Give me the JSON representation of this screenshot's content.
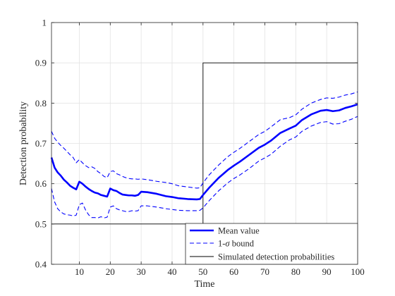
{
  "chart_data": {
    "type": "line",
    "xlabel": "Time",
    "ylabel": "Detection probability",
    "xlim": [
      1,
      100
    ],
    "ylim": [
      0.4,
      1.0
    ],
    "xticks": [
      10,
      20,
      30,
      40,
      50,
      60,
      70,
      80,
      90,
      100
    ],
    "yticks": [
      0.4,
      0.5,
      0.6,
      0.7,
      0.8,
      0.9,
      1
    ],
    "ytick_labels": [
      "0.4",
      "0.5",
      "0.6",
      "0.7",
      "0.8",
      "0.9",
      "1"
    ],
    "grid": true,
    "legend_position": "bottom-right",
    "series": [
      {
        "name": "Mean value",
        "color": "#0000ff",
        "style": "solid-thick",
        "x": [
          1,
          2,
          3,
          4,
          5,
          6,
          7,
          8,
          9,
          10,
          11,
          12,
          13,
          14,
          15,
          16,
          17,
          18,
          19,
          20,
          21,
          22,
          23,
          24,
          25,
          26,
          27,
          28,
          29,
          30,
          32,
          35,
          38,
          40,
          42,
          45,
          48,
          49,
          50,
          52,
          55,
          58,
          60,
          62,
          65,
          68,
          70,
          72,
          75,
          78,
          80,
          82,
          85,
          88,
          90,
          92,
          94,
          96,
          98,
          100
        ],
        "y": [
          0.665,
          0.64,
          0.628,
          0.62,
          0.61,
          0.603,
          0.595,
          0.59,
          0.586,
          0.605,
          0.6,
          0.593,
          0.587,
          0.582,
          0.578,
          0.576,
          0.572,
          0.57,
          0.568,
          0.588,
          0.584,
          0.582,
          0.577,
          0.573,
          0.572,
          0.571,
          0.571,
          0.57,
          0.572,
          0.58,
          0.579,
          0.575,
          0.569,
          0.567,
          0.564,
          0.562,
          0.561,
          0.562,
          0.572,
          0.59,
          0.614,
          0.634,
          0.645,
          0.655,
          0.672,
          0.689,
          0.697,
          0.707,
          0.726,
          0.737,
          0.744,
          0.758,
          0.772,
          0.781,
          0.783,
          0.78,
          0.782,
          0.788,
          0.792,
          0.797
        ]
      },
      {
        "name": "1-σ bound",
        "color": "#0000ff",
        "style": "dashed",
        "x": [
          1,
          2,
          3,
          4,
          5,
          6,
          7,
          8,
          9,
          10,
          11,
          12,
          13,
          14,
          15,
          16,
          17,
          18,
          19,
          20,
          21,
          22,
          23,
          24,
          25,
          26,
          27,
          28,
          29,
          30,
          32,
          35,
          38,
          40,
          42,
          45,
          48,
          49,
          50,
          52,
          55,
          58,
          60,
          62,
          65,
          68,
          70,
          72,
          75,
          78,
          80,
          82,
          85,
          88,
          90,
          92,
          94,
          96,
          98,
          100
        ],
        "y": [
          0.73,
          0.713,
          0.703,
          0.695,
          0.688,
          0.68,
          0.672,
          0.665,
          0.652,
          0.66,
          0.652,
          0.645,
          0.64,
          0.642,
          0.638,
          0.63,
          0.625,
          0.618,
          0.615,
          0.63,
          0.632,
          0.625,
          0.622,
          0.618,
          0.615,
          0.613,
          0.612,
          0.612,
          0.611,
          0.612,
          0.61,
          0.606,
          0.603,
          0.6,
          0.595,
          0.592,
          0.589,
          0.59,
          0.602,
          0.622,
          0.646,
          0.667,
          0.678,
          0.688,
          0.705,
          0.722,
          0.73,
          0.741,
          0.759,
          0.764,
          0.771,
          0.785,
          0.8,
          0.809,
          0.813,
          0.812,
          0.815,
          0.82,
          0.823,
          0.828
        ]
      },
      {
        "name": "1-σ bound lower",
        "color": "#0000ff",
        "style": "dashed",
        "x": [
          1,
          2,
          3,
          4,
          5,
          6,
          7,
          8,
          9,
          10,
          11,
          12,
          13,
          14,
          15,
          16,
          17,
          18,
          19,
          20,
          21,
          22,
          23,
          24,
          25,
          26,
          27,
          28,
          29,
          30,
          32,
          35,
          38,
          40,
          42,
          45,
          48,
          49,
          50,
          52,
          55,
          58,
          60,
          62,
          65,
          68,
          70,
          72,
          75,
          78,
          80,
          82,
          85,
          88,
          90,
          92,
          94,
          96,
          98,
          100
        ],
        "y": [
          0.588,
          0.555,
          0.538,
          0.53,
          0.525,
          0.523,
          0.522,
          0.52,
          0.522,
          0.548,
          0.552,
          0.535,
          0.523,
          0.516,
          0.516,
          0.515,
          0.518,
          0.515,
          0.517,
          0.542,
          0.545,
          0.538,
          0.535,
          0.533,
          0.531,
          0.531,
          0.533,
          0.532,
          0.533,
          0.545,
          0.545,
          0.542,
          0.538,
          0.536,
          0.534,
          0.533,
          0.533,
          0.534,
          0.54,
          0.558,
          0.582,
          0.602,
          0.613,
          0.622,
          0.638,
          0.656,
          0.664,
          0.673,
          0.693,
          0.709,
          0.716,
          0.73,
          0.743,
          0.752,
          0.754,
          0.748,
          0.749,
          0.755,
          0.76,
          0.767
        ]
      },
      {
        "name": "Simulated detection probabilities",
        "color": "#000000",
        "style": "solid-thin",
        "x": [
          1,
          50,
          50,
          100
        ],
        "y": [
          0.5,
          0.5,
          0.9,
          0.9
        ]
      }
    ],
    "legend": [
      {
        "label": "Mean value",
        "style": "solid-thick",
        "color": "#0000ff"
      },
      {
        "label": "1-σ bound",
        "style": "dashed",
        "color": "#0000ff"
      },
      {
        "label": "Simulated detection probabilities",
        "style": "solid-thin",
        "color": "#000000"
      }
    ]
  }
}
